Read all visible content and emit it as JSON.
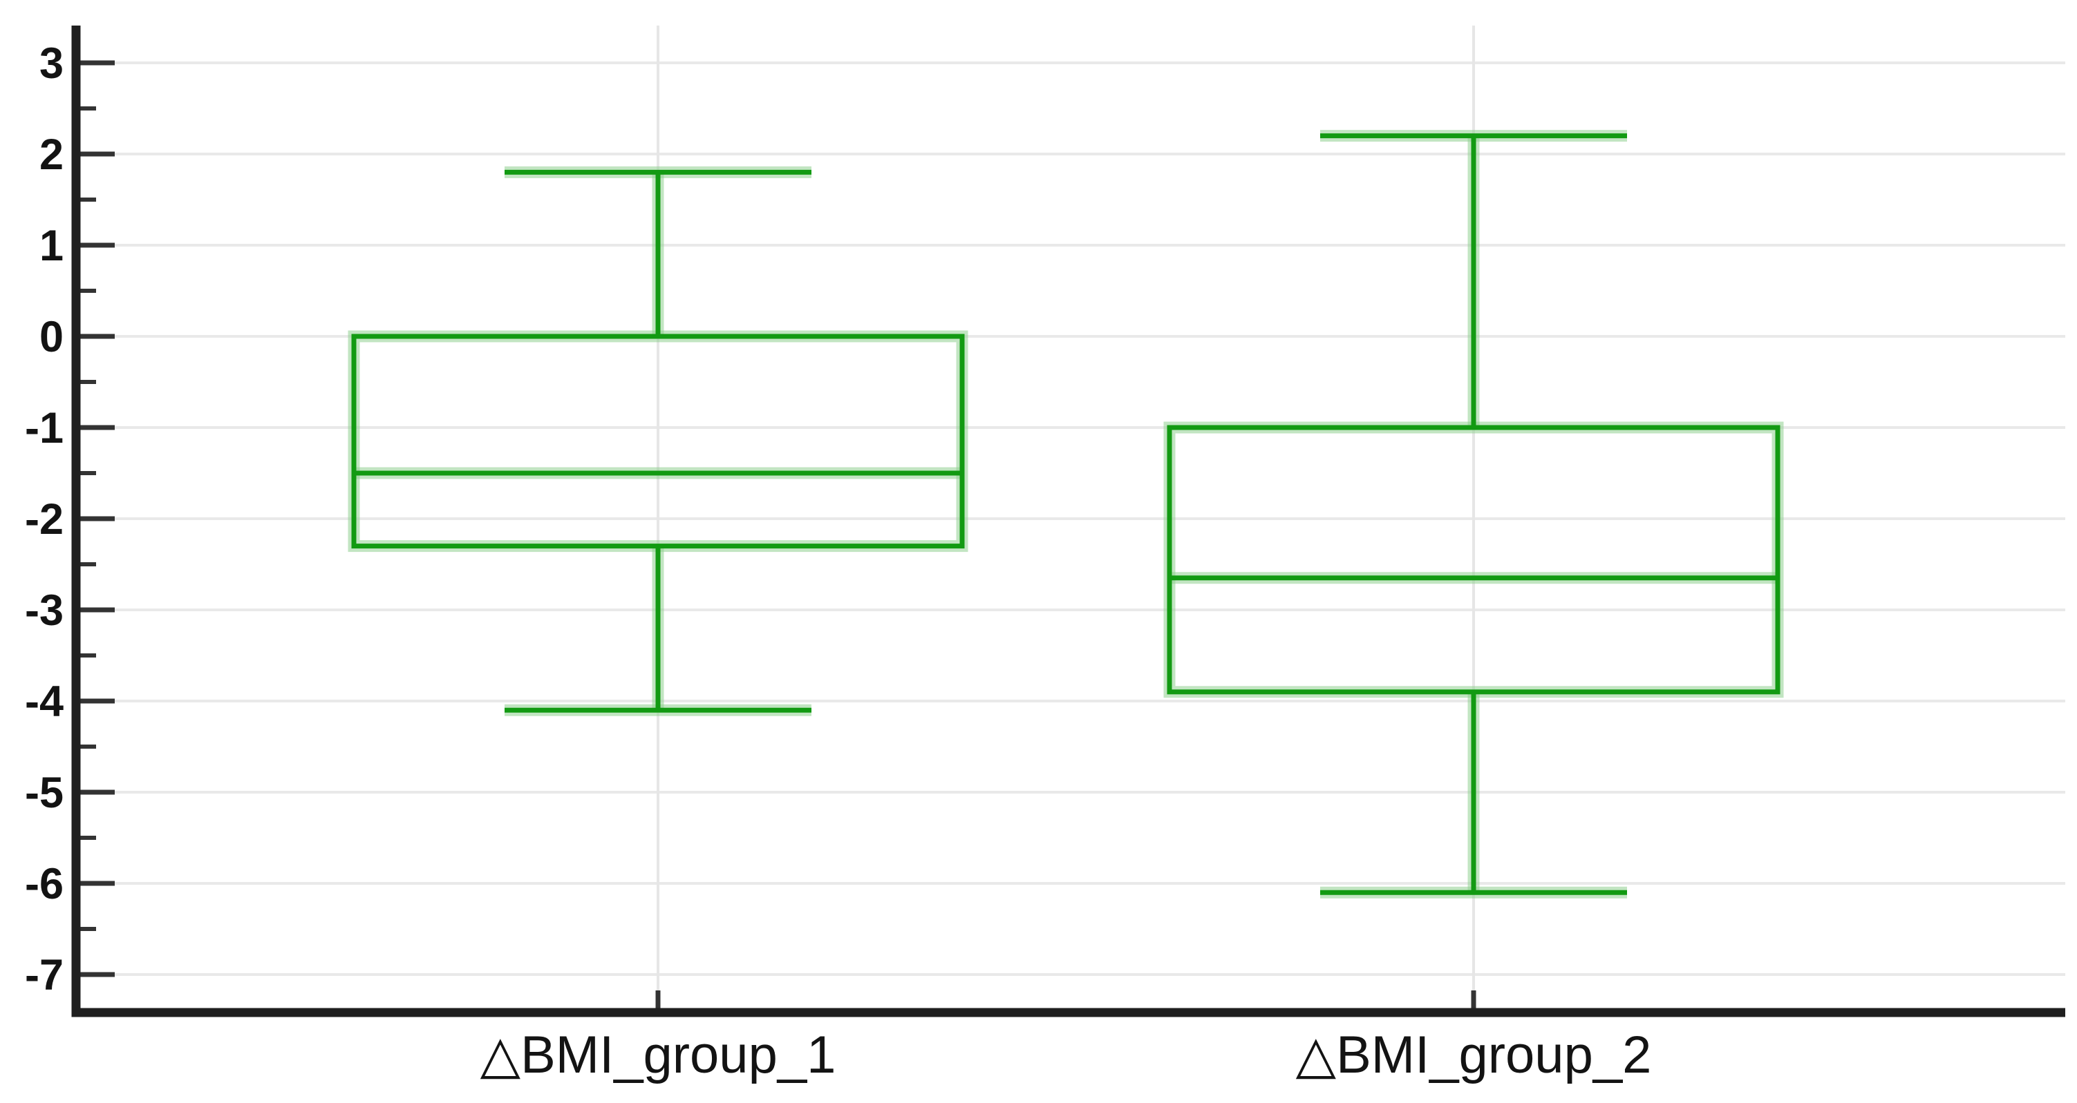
{
  "figure": {
    "title": "",
    "background": "#ffffff"
  },
  "chart_data": {
    "type": "boxplot",
    "orientation": "vertical",
    "categories": [
      "△BMI_group_1",
      "△BMI_group_2"
    ],
    "series": [
      {
        "name": "△BMI_group_1",
        "whisker_low": -4.1,
        "q1": -2.3,
        "median": -1.5,
        "q3": 0.0,
        "whisker_high": 1.8
      },
      {
        "name": "△BMI_group_2",
        "whisker_low": -6.1,
        "q1": -3.9,
        "median": -2.65,
        "q3": -1.0,
        "whisker_high": 2.2
      }
    ],
    "xlabel": "",
    "ylabel": "",
    "ylim": [
      -7.5,
      3.5
    ],
    "y_major_ticks": [
      3,
      2,
      1,
      0,
      -1,
      -2,
      -3,
      -4,
      -5,
      -6,
      -7
    ],
    "y_major_tick_labels": [
      "3",
      "2",
      "1",
      "0",
      "-1",
      "-2",
      "-3",
      "-4",
      "-5",
      "-6",
      "-7"
    ],
    "y_minor_ticks": [
      2.5,
      1.5,
      0.5,
      -0.5,
      -1.5,
      -2.5,
      -3.5,
      -4.5,
      -5.5,
      -6.5
    ],
    "grid": {
      "horizontal_major": true,
      "vertical_category_guides": true,
      "minor_gridlines": false
    },
    "legend": "none",
    "colors": {
      "box_stroke": "#129a12",
      "box_halo": "#8fd08f",
      "box_fill": "#ffffff",
      "axis_line": "#1f1f1f",
      "tick": "#333333",
      "gridline": "#e9e9e9",
      "category_guide": "#e6e6e6",
      "label_text": "#131313",
      "background": "#ffffff"
    }
  }
}
